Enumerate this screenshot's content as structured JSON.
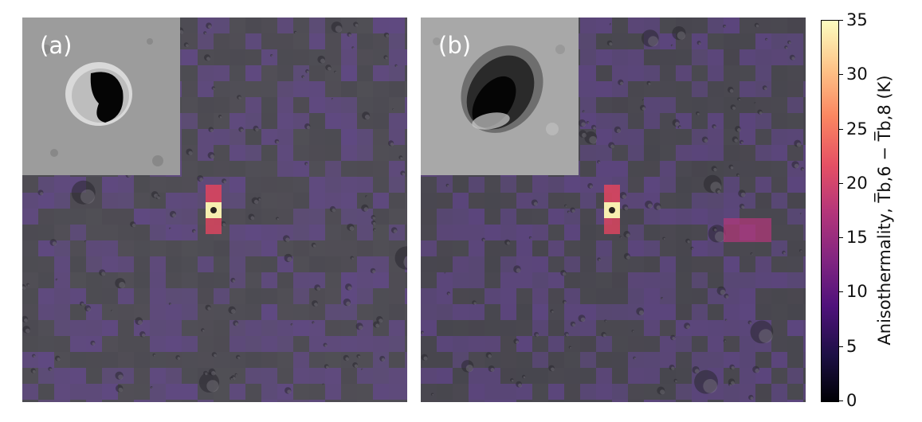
{
  "panels": [
    {
      "label": "(a)"
    },
    {
      "label": "(b)"
    }
  ],
  "colorbar": {
    "label_prefix": "Anisothermality, ",
    "label_formula": "T̅b,6 − T̅b,8 (K)",
    "ticks": [
      "0",
      "5",
      "10",
      "15",
      "20",
      "25",
      "30",
      "35"
    ],
    "min": 0,
    "max": 35
  },
  "colors": {
    "tile_purple": "#6a3fa8",
    "hot_red": "#d9455f",
    "hot_yellow": "#f7efb0"
  }
}
